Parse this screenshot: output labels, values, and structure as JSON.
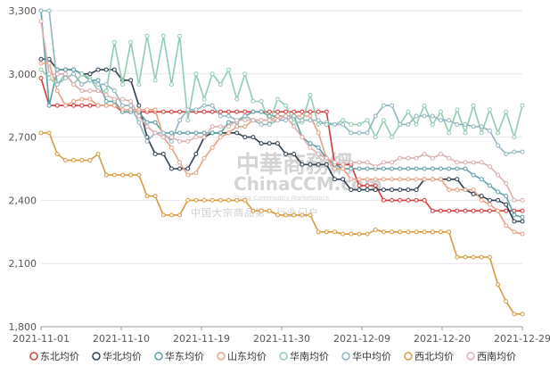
{
  "watermark": {
    "title": "中華商務網",
    "brand": "ChinaCCM.com",
    "subtitle": "China Commodity Marketplace",
    "slogan": "中国大宗商品第一行业门户"
  },
  "chart_data": {
    "type": "line",
    "title": "",
    "xlabel": "",
    "ylabel": "",
    "ylim": [
      1800,
      3300
    ],
    "yticks": [
      "1,800",
      "2,100",
      "2,400",
      "2,700",
      "3,000",
      "3,300"
    ],
    "xtick_labels": [
      "2021-11-01",
      "2021-11-10",
      "2021-11-19",
      "2021-11-30",
      "2021-12-09",
      "2021-12-20",
      "2021-12-29"
    ],
    "grid": "horizontal",
    "legend_position": "bottom",
    "series": [
      {
        "name": "东北均价",
        "color": "#d13b3b",
        "values": [
          2980,
          2850,
          2850,
          2850,
          2850,
          2850,
          2850,
          2850,
          2850,
          2850,
          2820,
          2820,
          2820,
          2820,
          2820,
          2820,
          2820,
          2820,
          2820,
          2820,
          2820,
          2820,
          2820,
          2820,
          2820,
          2820,
          2820,
          2820,
          2820,
          2820,
          2820,
          2820,
          2820,
          2820,
          2820,
          2820,
          2570,
          2570,
          2570,
          2470,
          2470,
          2470,
          2400,
          2400,
          2400,
          2400,
          2400,
          2400,
          2350,
          2350,
          2350,
          2350,
          2350,
          2350,
          2350,
          2350,
          2350,
          2350,
          2350,
          2350
        ]
      },
      {
        "name": "华北均价",
        "color": "#2c3e50",
        "values": [
          3070,
          3070,
          3020,
          3020,
          3020,
          3000,
          3000,
          3020,
          3020,
          3020,
          2970,
          2970,
          2850,
          2700,
          2620,
          2620,
          2550,
          2550,
          2550,
          2620,
          2700,
          2720,
          2720,
          2720,
          2720,
          2700,
          2700,
          2670,
          2670,
          2670,
          2620,
          2620,
          2570,
          2570,
          2570,
          2570,
          2500,
          2500,
          2450,
          2450,
          2450,
          2450,
          2450,
          2450,
          2450,
          2450,
          2450,
          2500,
          2500,
          2500,
          2500,
          2500,
          2450,
          2430,
          2420,
          2400,
          2400,
          2380,
          2300,
          2300
        ]
      },
      {
        "name": "华东均价",
        "color": "#5c9fa6",
        "values": [
          3300,
          2850,
          3020,
          3020,
          3020,
          3000,
          2970,
          2970,
          2870,
          2870,
          2820,
          2820,
          2820,
          2770,
          2770,
          2720,
          2720,
          2720,
          2720,
          2720,
          2720,
          2720,
          2720,
          2770,
          2770,
          2800,
          2820,
          2820,
          2800,
          2800,
          2800,
          2800,
          2700,
          2670,
          2650,
          2600,
          2570,
          2550,
          2550,
          2550,
          2550,
          2550,
          2550,
          2550,
          2550,
          2550,
          2550,
          2550,
          2550,
          2550,
          2550,
          2550,
          2550,
          2520,
          2500,
          2470,
          2440,
          2420,
          2330,
          2320
        ]
      },
      {
        "name": "山东均价",
        "color": "#e8a183",
        "values": [
          3050,
          3050,
          2920,
          2850,
          2870,
          2880,
          2880,
          2850,
          2850,
          2850,
          2830,
          2830,
          2830,
          2830,
          2830,
          2700,
          2650,
          2580,
          2520,
          2530,
          2600,
          2650,
          2700,
          2720,
          2750,
          2750,
          2780,
          2780,
          2780,
          2800,
          2800,
          2800,
          2800,
          2800,
          2720,
          2600,
          2550,
          2550,
          2500,
          2500,
          2500,
          2500,
          2500,
          2500,
          2500,
          2500,
          2500,
          2500,
          2500,
          2500,
          2450,
          2450,
          2450,
          2450,
          2400,
          2380,
          2350,
          2280,
          2250,
          2240
        ]
      },
      {
        "name": "华南均价",
        "color": "#8fcdb0",
        "values": [
          3020,
          2980,
          2950,
          3000,
          2950,
          3000,
          2980,
          2920,
          2920,
          3150,
          2950,
          3150,
          2950,
          3180,
          2970,
          3180,
          2950,
          3180,
          2780,
          3000,
          2880,
          3000,
          2950,
          3020,
          2880,
          3000,
          2870,
          2870,
          2770,
          2880,
          2850,
          2770,
          2770,
          2900,
          2760,
          2770,
          2760,
          2780,
          2760,
          2760,
          2780,
          2700,
          2780,
          2700,
          2760,
          2820,
          2760,
          2850,
          2760,
          2820,
          2720,
          2830,
          2720,
          2850,
          2720,
          2830,
          2720,
          2820,
          2700,
          2850
        ]
      },
      {
        "name": "华中均价",
        "color": "#8fb6bf",
        "values": [
          3300,
          3300,
          2950,
          2980,
          3000,
          2950,
          2970,
          2950,
          2950,
          2920,
          2850,
          2850,
          2770,
          2680,
          2720,
          2720,
          2680,
          2780,
          2830,
          2830,
          2850,
          2850,
          2800,
          2800,
          2780,
          2800,
          2780,
          2760,
          2760,
          2780,
          2780,
          2800,
          2780,
          2780,
          2780,
          2760,
          2760,
          2760,
          2720,
          2720,
          2720,
          2800,
          2850,
          2850,
          2760,
          2760,
          2800,
          2800,
          2800,
          2780,
          2780,
          2760,
          2760,
          2750,
          2750,
          2730,
          2660,
          2620,
          2630,
          2630
        ]
      },
      {
        "name": "西北均价",
        "color": "#d89a3c",
        "values": [
          2720,
          2720,
          2620,
          2590,
          2590,
          2590,
          2590,
          2620,
          2520,
          2520,
          2520,
          2520,
          2520,
          2420,
          2420,
          2330,
          2330,
          2330,
          2400,
          2400,
          2400,
          2400,
          2400,
          2400,
          2400,
          2400,
          2350,
          2350,
          2350,
          2330,
          2330,
          2330,
          2330,
          2330,
          2250,
          2250,
          2250,
          2240,
          2240,
          2240,
          2240,
          2260,
          2250,
          2250,
          2250,
          2250,
          2250,
          2250,
          2250,
          2250,
          2250,
          2130,
          2130,
          2130,
          2130,
          2130,
          2000,
          1920,
          1860,
          1860
        ]
      },
      {
        "name": "西南均价",
        "color": "#d9aeae",
        "values": [
          3250,
          3000,
          3000,
          3000,
          2950,
          2920,
          2920,
          2920,
          2900,
          2880,
          2880,
          2870,
          2800,
          2750,
          2720,
          2700,
          2700,
          2680,
          2680,
          2700,
          2700,
          2750,
          2750,
          2750,
          2780,
          2780,
          2780,
          2780,
          2780,
          2780,
          2800,
          2750,
          2700,
          2650,
          2620,
          2600,
          2580,
          2570,
          2580,
          2580,
          2580,
          2560,
          2580,
          2580,
          2600,
          2600,
          2600,
          2620,
          2600,
          2620,
          2600,
          2580,
          2580,
          2580,
          2580,
          2560,
          2520,
          2480,
          2400,
          2400
        ]
      }
    ]
  }
}
